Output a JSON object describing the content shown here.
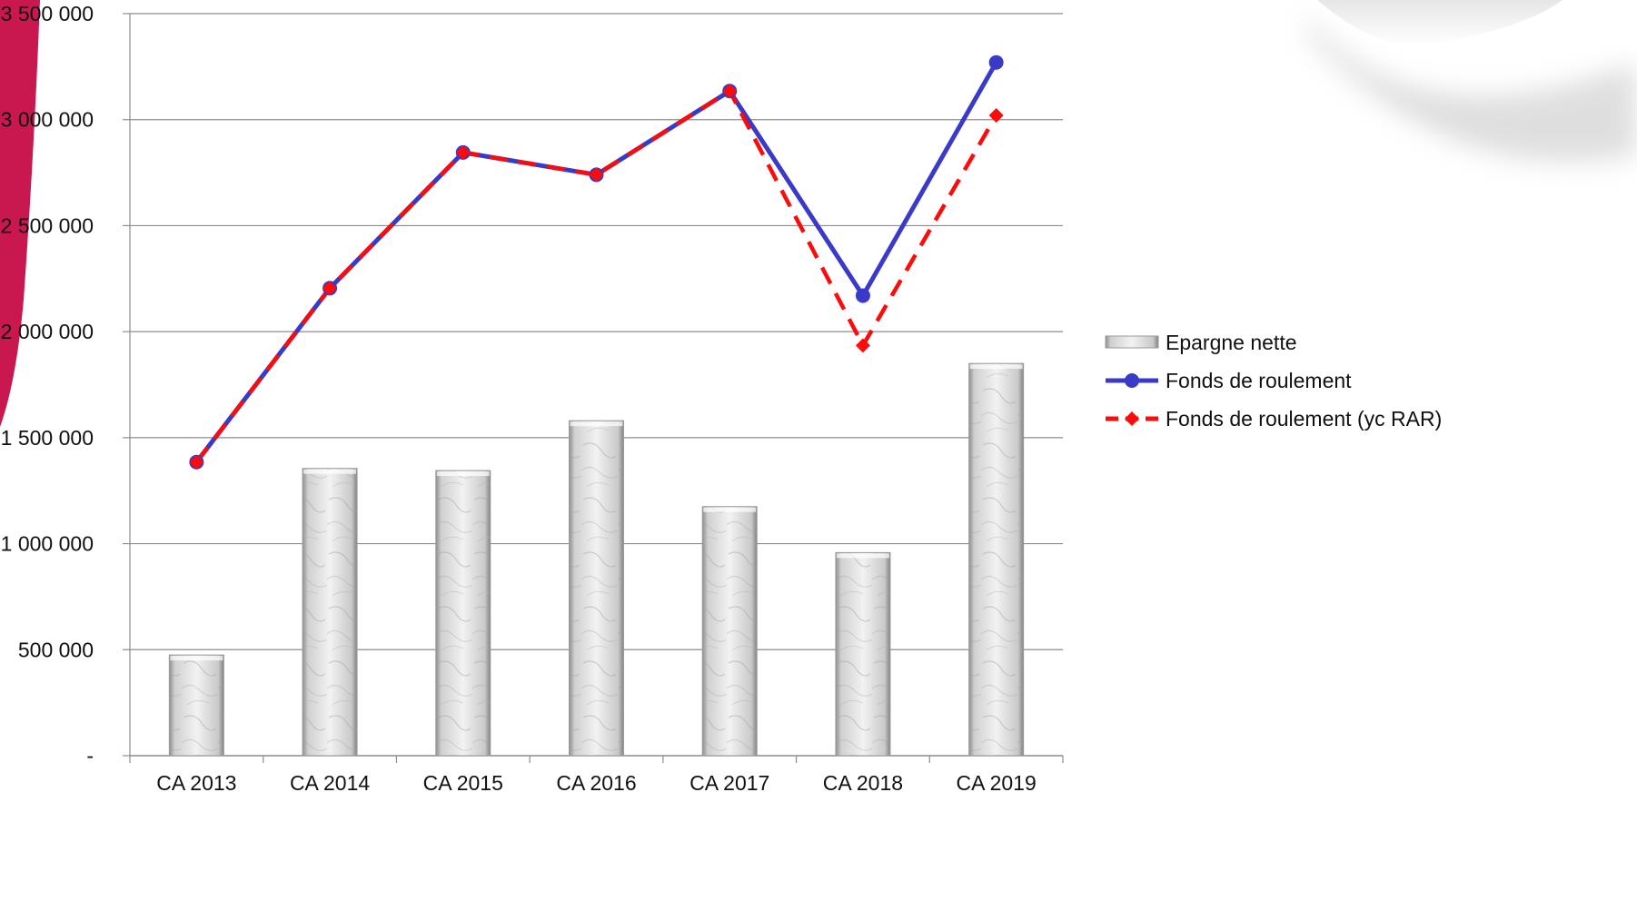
{
  "chart_data": {
    "type": "bar",
    "categories": [
      "CA 2013",
      "CA 2014",
      "CA 2015",
      "CA 2016",
      "CA 2017",
      "CA 2018",
      "CA 2019"
    ],
    "series": [
      {
        "name": "Epargne nette",
        "type": "bar",
        "values": [
          475000,
          1355000,
          1345000,
          1580000,
          1175000,
          958000,
          1850000
        ],
        "color": "#d9d9d9"
      },
      {
        "name": "Fonds de roulement",
        "type": "line",
        "values": [
          1385000,
          2205000,
          2845000,
          2740000,
          3135000,
          2170000,
          3270000
        ],
        "color": "#3a3ac8",
        "marker": "circle"
      },
      {
        "name": "Fonds de roulement (yc RAR)",
        "type": "line",
        "values": [
          1385000,
          2205000,
          2845000,
          2740000,
          3135000,
          1935000,
          3020000
        ],
        "color": "#ff0a0a",
        "marker": "diamond",
        "dash": true
      }
    ],
    "yticks": [
      {
        "value": 0,
        "label": "-"
      },
      {
        "value": 500000,
        "label": "500 000"
      },
      {
        "value": 1000000,
        "label": "1 000 000"
      },
      {
        "value": 1500000,
        "label": "1 500 000"
      },
      {
        "value": 2000000,
        "label": "2 000 000"
      },
      {
        "value": 2500000,
        "label": "2 500 000"
      },
      {
        "value": 3000000,
        "label": "3 000 000"
      },
      {
        "value": 3500000,
        "label": "3 500 000"
      }
    ],
    "ylim": [
      0,
      3500000
    ],
    "title": "",
    "xlabel": "",
    "ylabel": "",
    "grid": true,
    "legend_position": "right"
  },
  "decor": {
    "accent_color": "#c8184f"
  }
}
